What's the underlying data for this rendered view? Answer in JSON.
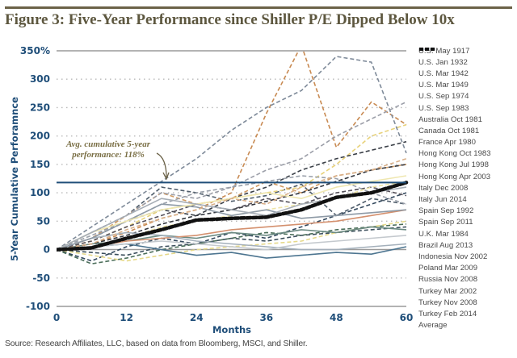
{
  "header": {
    "title": "Figure 3: Five-Year Performance since Shiller P/E Dipped Below 10x"
  },
  "footer": {
    "source": "Source: Research Affiliates, LLC, based on data from Bloomberg, MSCI, and Shiller."
  },
  "chart_data": {
    "type": "line",
    "title": "Figure 3: Five-Year Performance since Shiller P/E Dipped Below 10x",
    "xlabel": "Months",
    "ylabel": "5-Year Cumulative Perforamnce",
    "xlim": [
      0,
      60
    ],
    "ylim": [
      -100,
      350
    ],
    "x_ticks": [
      0,
      12,
      24,
      36,
      48,
      60
    ],
    "x_tick_labels": [
      "0",
      "12",
      "24",
      "36",
      "48",
      "60"
    ],
    "y_ticks": [
      -100,
      -50,
      0,
      50,
      100,
      150,
      200,
      250,
      300,
      350
    ],
    "y_tick_labels": [
      "-100",
      "-50",
      "0",
      "50",
      "100",
      "150",
      "200",
      "250",
      "300",
      "350%"
    ],
    "grid": "horizontal-dotted",
    "legend_position": "right",
    "reference_line": {
      "value": 118,
      "color": "#1f4e79"
    },
    "annotation": {
      "text_line1": "Avg. cumulative 5-year",
      "text_line2": "performance: 118%",
      "color": "#7a6f45"
    },
    "x": [
      0,
      6,
      12,
      18,
      24,
      30,
      36,
      42,
      48,
      54,
      60
    ],
    "series": [
      {
        "name": "U.S. May 1917",
        "color": "#34495e",
        "dash": "dashed",
        "values": [
          0,
          -20,
          5,
          20,
          10,
          30,
          20,
          40,
          60,
          80,
          100
        ]
      },
      {
        "name": "U.S. Jan 1932",
        "color": "#4f5d6b",
        "dash": "dashed",
        "values": [
          0,
          30,
          60,
          110,
          100,
          85,
          95,
          115,
          60,
          90,
          80
        ]
      },
      {
        "name": "U.S. Mar 1942",
        "color": "#e8d27a",
        "dash": "dashed",
        "values": [
          0,
          15,
          40,
          70,
          80,
          90,
          100,
          110,
          150,
          200,
          220
        ]
      },
      {
        "name": "U.S. Mar 1949",
        "color": "#c88a52",
        "dash": "dashed",
        "values": [
          0,
          10,
          30,
          55,
          70,
          100,
          240,
          360,
          180,
          260,
          220
        ]
      },
      {
        "name": "U.S. Sep 1974",
        "color": "#3a3f47",
        "dash": "dashed",
        "values": [
          0,
          20,
          50,
          70,
          60,
          90,
          110,
          140,
          160,
          175,
          190
        ]
      },
      {
        "name": "U.S. Sep 1983",
        "color": "#7e8a99",
        "dash": "dashed",
        "values": [
          0,
          40,
          80,
          120,
          160,
          210,
          250,
          280,
          340,
          330,
          170
        ]
      },
      {
        "name": "Australia Oct 1981",
        "color": "#3c4f5c",
        "dash": "dashed",
        "values": [
          0,
          -5,
          -10,
          5,
          10,
          20,
          15,
          25,
          30,
          35,
          40
        ]
      },
      {
        "name": "Canada Oct 1981",
        "color": "#4b6e5a",
        "dash": "dashed",
        "values": [
          0,
          -25,
          -15,
          0,
          10,
          20,
          30,
          25,
          35,
          40,
          45
        ]
      },
      {
        "name": "France Apr 1980",
        "color": "#e6d98a",
        "dash": "dashed",
        "values": [
          0,
          -10,
          -20,
          -10,
          0,
          5,
          10,
          15,
          30,
          40,
          50
        ]
      },
      {
        "name": "Hong Kong Oct 1983",
        "color": "#d09a62",
        "dash": "dashed",
        "values": [
          0,
          20,
          60,
          100,
          80,
          90,
          120,
          100,
          130,
          140,
          150
        ]
      },
      {
        "name": "Hong Kong Jul 1998",
        "color": "#55505a",
        "dash": "dashed",
        "values": [
          0,
          15,
          40,
          60,
          80,
          70,
          90,
          80,
          100,
          110,
          95
        ]
      },
      {
        "name": "Hong Kong Apr 2003",
        "color": "#9aa0aa",
        "dash": "dashed",
        "values": [
          0,
          25,
          50,
          80,
          100,
          110,
          120,
          130,
          125,
          100,
          80
        ]
      },
      {
        "name": "Italy Dec 2008",
        "color": "#4d7590",
        "dash": "solid",
        "values": [
          0,
          5,
          10,
          0,
          -10,
          -5,
          -15,
          -10,
          -5,
          -8,
          5
        ]
      },
      {
        "name": "Italy Jun 2014",
        "color": "#6b8a82",
        "dash": "solid",
        "values": [
          0,
          10,
          15,
          25,
          20,
          30,
          25,
          35,
          30,
          40,
          35
        ]
      },
      {
        "name": "Spain Sep 1992",
        "color": "#eee4a6",
        "dash": "dashed",
        "values": [
          0,
          5,
          20,
          40,
          50,
          60,
          70,
          80,
          90,
          110,
          120
        ]
      },
      {
        "name": "Spain Sep 2011",
        "color": "#d4906e",
        "dash": "solid",
        "values": [
          0,
          5,
          15,
          20,
          25,
          35,
          40,
          45,
          50,
          60,
          70
        ]
      },
      {
        "name": "U.K. Mar 1984",
        "color": "#33363d",
        "dash": "dashed",
        "values": [
          0,
          10,
          25,
          45,
          60,
          70,
          85,
          100,
          120,
          140,
          150
        ]
      },
      {
        "name": "Brazil Aug 2013",
        "color": "#a4b0bb",
        "dash": "solid",
        "values": [
          0,
          20,
          30,
          25,
          15,
          10,
          5,
          0,
          0,
          5,
          10
        ]
      },
      {
        "name": "Indonesia Nov 2002",
        "color": "#9b9ea8",
        "dash": "dashed",
        "values": [
          0,
          30,
          60,
          100,
          90,
          110,
          140,
          160,
          200,
          230,
          260
        ]
      },
      {
        "name": "Poland Mar 2009",
        "color": "#8e9aa6",
        "dash": "solid",
        "values": [
          0,
          20,
          50,
          80,
          75,
          60,
          70,
          55,
          60,
          65,
          70
        ]
      },
      {
        "name": "Russia Nov 2008",
        "color": "#efe7b0",
        "dash": "solid",
        "values": [
          0,
          30,
          50,
          70,
          80,
          90,
          100,
          90,
          110,
          120,
          130
        ]
      },
      {
        "name": "Turkey Mar 2002",
        "color": "#d9b08a",
        "dash": "dashed",
        "values": [
          0,
          10,
          35,
          55,
          70,
          90,
          80,
          110,
          130,
          140,
          160
        ]
      },
      {
        "name": "Turkey Nov 2008",
        "color": "#a7aeb6",
        "dash": "solid",
        "values": [
          0,
          30,
          60,
          90,
          80,
          70,
          60,
          80,
          90,
          100,
          110
        ]
      },
      {
        "name": "Turkey Feb 2014",
        "color": "#c4c9ce",
        "dash": "solid",
        "values": [
          0,
          5,
          10,
          15,
          10,
          5,
          0,
          10,
          15,
          20,
          25
        ]
      },
      {
        "name": "Average",
        "color": "#111111",
        "dash": "thick-dashed",
        "values": [
          0,
          3,
          20,
          35,
          52,
          55,
          57,
          70,
          92,
          100,
          118
        ]
      }
    ]
  }
}
